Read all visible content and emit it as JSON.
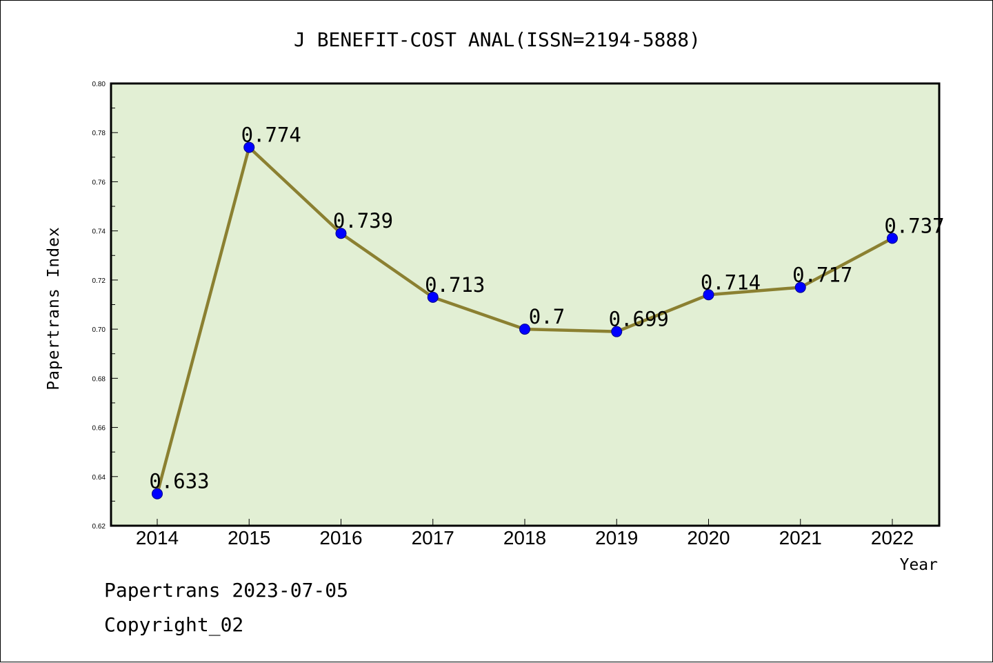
{
  "chart_data": {
    "type": "line",
    "title": "J BENEFIT-COST ANAL(ISSN=2194-5888)",
    "xlabel": "Year",
    "ylabel": "Papertrans Index",
    "categories": [
      "2014",
      "2015",
      "2016",
      "2017",
      "2018",
      "2019",
      "2020",
      "2021",
      "2022"
    ],
    "values": [
      0.633,
      0.774,
      0.739,
      0.713,
      0.7,
      0.699,
      0.714,
      0.717,
      0.737
    ],
    "data_labels": [
      "0.633",
      "0.774",
      "0.739",
      "0.713",
      "0.7",
      "0.699",
      "0.714",
      "0.717",
      "0.737"
    ],
    "ylim": [
      0.62,
      0.8
    ],
    "yticks": [
      "0.62",
      "0.64",
      "0.66",
      "0.68",
      "0.70",
      "0.72",
      "0.74",
      "0.76",
      "0.78",
      "0.80"
    ],
    "grid": false,
    "colors": {
      "plot_background": "#e2efd4",
      "line": "#8b8031",
      "marker": "#0000ff"
    }
  },
  "footer": {
    "line1": "Papertrans 2023-07-05",
    "line2": "Copyright_02"
  }
}
